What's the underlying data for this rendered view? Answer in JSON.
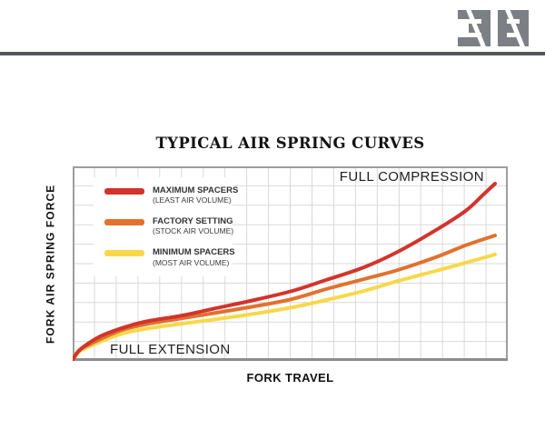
{
  "header": {
    "logo_text": "38"
  },
  "chart_data": {
    "type": "line",
    "title": "TYPICAL AIR SPRING CURVES",
    "xlabel": "FORK TRAVEL",
    "ylabel": "FORK AIR SPRING FORCE",
    "annotations": {
      "full_compression": "FULL COMPRESSION",
      "full_extension": "FULL EXTENSION"
    },
    "legend_position": "top-left",
    "grid": {
      "cols": 20,
      "rows": 10,
      "visible": true,
      "line_color": "#d9d9d9",
      "border_color": "#9e9e9e"
    },
    "axes": {
      "x_range_note": "fork travel, full extension to full compression (no numeric ticks)",
      "y_range_note": "fork air spring force (no numeric ticks)"
    },
    "series": [
      {
        "name": "MAXIMUM SPACERS",
        "subtitle": "(LEAST AIR VOLUME)",
        "color": "#d2342c",
        "x": [
          0,
          0.012,
          0.03,
          0.065,
          0.11,
          0.17,
          0.26,
          0.34,
          0.43,
          0.52,
          0.6,
          0.69,
          0.77,
          0.86,
          0.93,
          0.97,
          1.0
        ],
        "y": [
          0,
          0.042,
          0.075,
          0.122,
          0.16,
          0.197,
          0.23,
          0.268,
          0.31,
          0.357,
          0.413,
          0.479,
          0.559,
          0.671,
          0.77,
          0.85,
          0.911
        ]
      },
      {
        "name": "FACTORY SETTING",
        "subtitle": "(STOCK AIR VOLUME)",
        "color": "#e2712e",
        "x": [
          0,
          0.012,
          0.03,
          0.11,
          0.17,
          0.26,
          0.34,
          0.43,
          0.52,
          0.6,
          0.69,
          0.77,
          0.86,
          0.93,
          1.0
        ],
        "y": [
          0,
          0.04,
          0.07,
          0.15,
          0.183,
          0.216,
          0.244,
          0.277,
          0.315,
          0.366,
          0.418,
          0.465,
          0.531,
          0.592,
          0.643
        ]
      },
      {
        "name": "MINIMUM SPACERS",
        "subtitle": "(MOST AIR VOLUME)",
        "color": "#f7d84a",
        "x": [
          0,
          0.012,
          0.03,
          0.11,
          0.17,
          0.26,
          0.34,
          0.43,
          0.52,
          0.6,
          0.69,
          0.77,
          0.86,
          0.93,
          1.0
        ],
        "y": [
          0,
          0.035,
          0.061,
          0.131,
          0.16,
          0.188,
          0.211,
          0.239,
          0.272,
          0.31,
          0.357,
          0.408,
          0.46,
          0.502,
          0.545
        ]
      }
    ]
  },
  "colors": {
    "header_rule": "#53575b",
    "logo_gray": "#7c8084",
    "grid_line": "#d9d9d9",
    "plot_border": "#9e9e9e",
    "plot_border_bottom": "#8d8d8d"
  }
}
